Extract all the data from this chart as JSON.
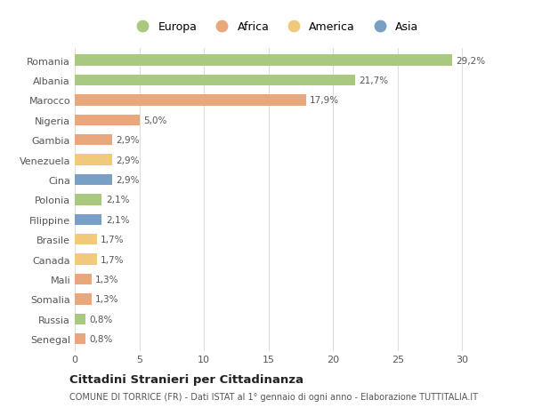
{
  "countries": [
    "Romania",
    "Albania",
    "Marocco",
    "Nigeria",
    "Gambia",
    "Venezuela",
    "Cina",
    "Polonia",
    "Filippine",
    "Brasile",
    "Canada",
    "Mali",
    "Somalia",
    "Russia",
    "Senegal"
  ],
  "values": [
    29.2,
    21.7,
    17.9,
    5.0,
    2.9,
    2.9,
    2.9,
    2.1,
    2.1,
    1.7,
    1.7,
    1.3,
    1.3,
    0.8,
    0.8
  ],
  "labels": [
    "29,2%",
    "21,7%",
    "17,9%",
    "5,0%",
    "2,9%",
    "2,9%",
    "2,9%",
    "2,1%",
    "2,1%",
    "1,7%",
    "1,7%",
    "1,3%",
    "1,3%",
    "0,8%",
    "0,8%"
  ],
  "colors": [
    "#a8c97f",
    "#a8c97f",
    "#e8a87c",
    "#e8a87c",
    "#e8a87c",
    "#f0c97a",
    "#7a9fc4",
    "#a8c97f",
    "#7a9fc4",
    "#f0c97a",
    "#f0c97a",
    "#e8a87c",
    "#e8a87c",
    "#a8c97f",
    "#e8a87c"
  ],
  "legend": [
    {
      "label": "Europa",
      "color": "#a8c97f"
    },
    {
      "label": "Africa",
      "color": "#e8a87c"
    },
    {
      "label": "America",
      "color": "#f0c97a"
    },
    {
      "label": "Asia",
      "color": "#7a9fc4"
    }
  ],
  "title": "Cittadini Stranieri per Cittadinanza",
  "subtitle": "COMUNE DI TORRICE (FR) - Dati ISTAT al 1° gennaio di ogni anno - Elaborazione TUTTITALIA.IT",
  "xlim": [
    0,
    31
  ],
  "xticks": [
    0,
    5,
    10,
    15,
    20,
    25,
    30
  ],
  "bg_color": "#ffffff",
  "bar_height": 0.55,
  "grid_color": "#dddddd",
  "label_fontsize": 7.5,
  "tick_fontsize": 8.0,
  "legend_fontsize": 9.0,
  "title_fontsize": 9.5,
  "subtitle_fontsize": 7.0
}
